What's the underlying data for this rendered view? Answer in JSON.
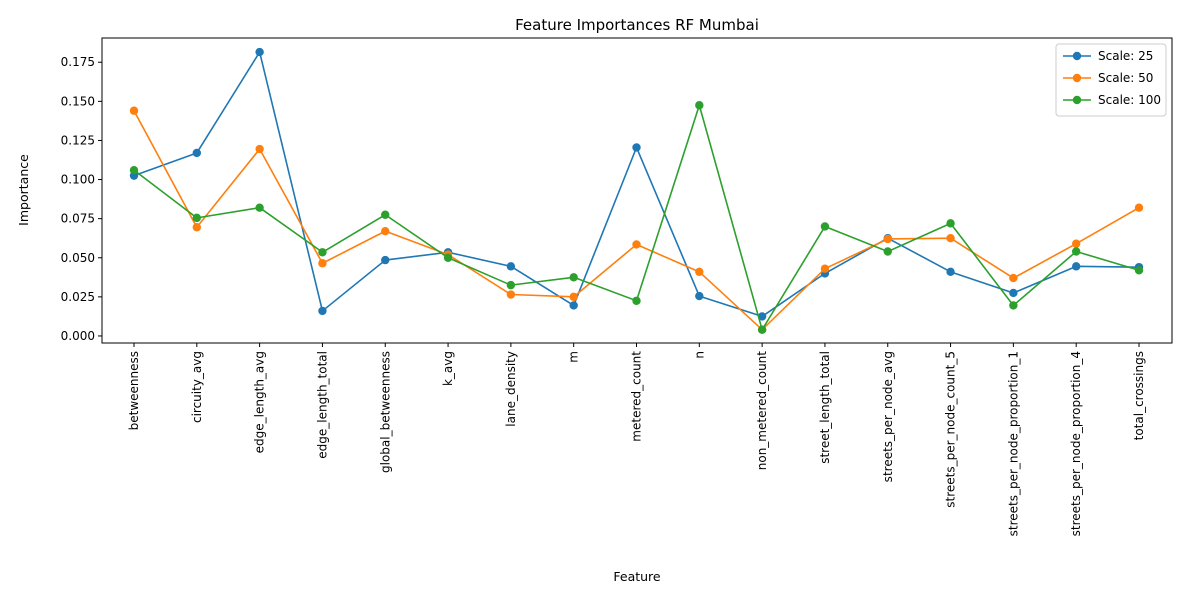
{
  "chart_data": {
    "type": "line",
    "title": "Feature Importances RF Mumbai",
    "xlabel": "Feature",
    "ylabel": "Importance",
    "ylim": [
      -0.0045,
      0.1905
    ],
    "yticks": [
      "0.000",
      "0.025",
      "0.050",
      "0.075",
      "0.100",
      "0.125",
      "0.150",
      "0.175"
    ],
    "grid": false,
    "legend_position": "top-right",
    "categories": [
      "betweenness",
      "circuity_avg",
      "edge_length_avg",
      "edge_length_total",
      "global_betweenness",
      "k_avg",
      "lane_density",
      "m",
      "metered_count",
      "n",
      "non_metered_count",
      "street_length_total",
      "streets_per_node_avg",
      "streets_per_node_count_5",
      "streets_per_node_proportion_1",
      "streets_per_node_proportion_4",
      "total_crossings"
    ],
    "series": [
      {
        "name": "Scale: 25",
        "color": "#1f77b4",
        "values": [
          0.1025,
          0.117,
          0.1815,
          0.016,
          0.0485,
          0.0535,
          0.0445,
          0.0195,
          0.1205,
          0.0255,
          0.0125,
          0.04,
          0.0625,
          0.041,
          0.0275,
          0.0445,
          0.044
        ]
      },
      {
        "name": "Scale: 50",
        "color": "#ff7f0e",
        "values": [
          0.144,
          0.0695,
          0.1195,
          0.0465,
          0.067,
          0.052,
          0.0265,
          0.025,
          0.0585,
          0.041,
          0.004,
          0.043,
          0.062,
          0.0625,
          0.037,
          0.059,
          0.082
        ]
      },
      {
        "name": "Scale: 100",
        "color": "#2ca02c",
        "values": [
          0.106,
          0.0755,
          0.082,
          0.0535,
          0.0775,
          0.05,
          0.0325,
          0.0375,
          0.0225,
          0.1475,
          0.004,
          0.07,
          0.054,
          0.072,
          0.0195,
          0.054,
          0.042
        ]
      }
    ]
  }
}
